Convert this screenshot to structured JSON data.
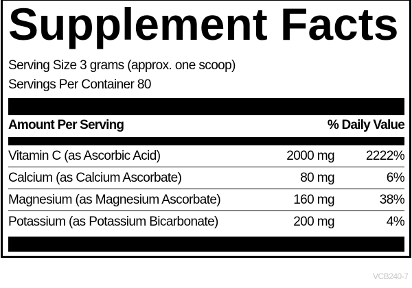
{
  "title": "Supplement Facts",
  "serving_size": "Serving Size 3 grams (approx. one scoop)",
  "servings_per_container": "Servings Per Container 80",
  "header": {
    "amount": "Amount Per Serving",
    "daily_value": "% Daily Value"
  },
  "rows": [
    {
      "name": "Vitamin C (as Ascorbic Acid)",
      "amount": "2000 mg",
      "dv": "2222%"
    },
    {
      "name": "Calcium (as Calcium Ascorbate)",
      "amount": "80 mg",
      "dv": "6%"
    },
    {
      "name": "Magnesium (as Magnesium Ascorbate)",
      "amount": "160 mg",
      "dv": "38%"
    },
    {
      "name": "Potassium (as Potassium Bicarbonate)",
      "amount": "200 mg",
      "dv": "4%"
    }
  ],
  "code": "VCB240-7"
}
